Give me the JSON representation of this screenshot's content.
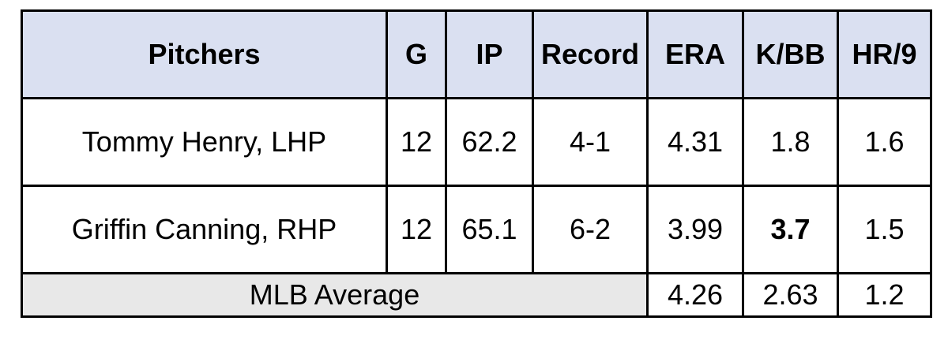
{
  "headers": [
    "Pitchers",
    "G",
    "IP",
    "Record",
    "ERA",
    "K/BB",
    "HR/9"
  ],
  "rows": [
    {
      "pitcher": "Tommy Henry, LHP",
      "g": "12",
      "ip": "62.2",
      "record": "4-1",
      "era": "4.31",
      "kbb": "1.8",
      "hr9": "1.6"
    },
    {
      "pitcher": "Griffin Canning, RHP",
      "g": "12",
      "ip": "65.1",
      "record": "6-2",
      "era": "3.99",
      "kbb": "3.7",
      "hr9": "1.5"
    }
  ],
  "average": {
    "label": "MLB Average",
    "era": "4.26",
    "kbb": "2.63",
    "hr9": "1.2"
  }
}
